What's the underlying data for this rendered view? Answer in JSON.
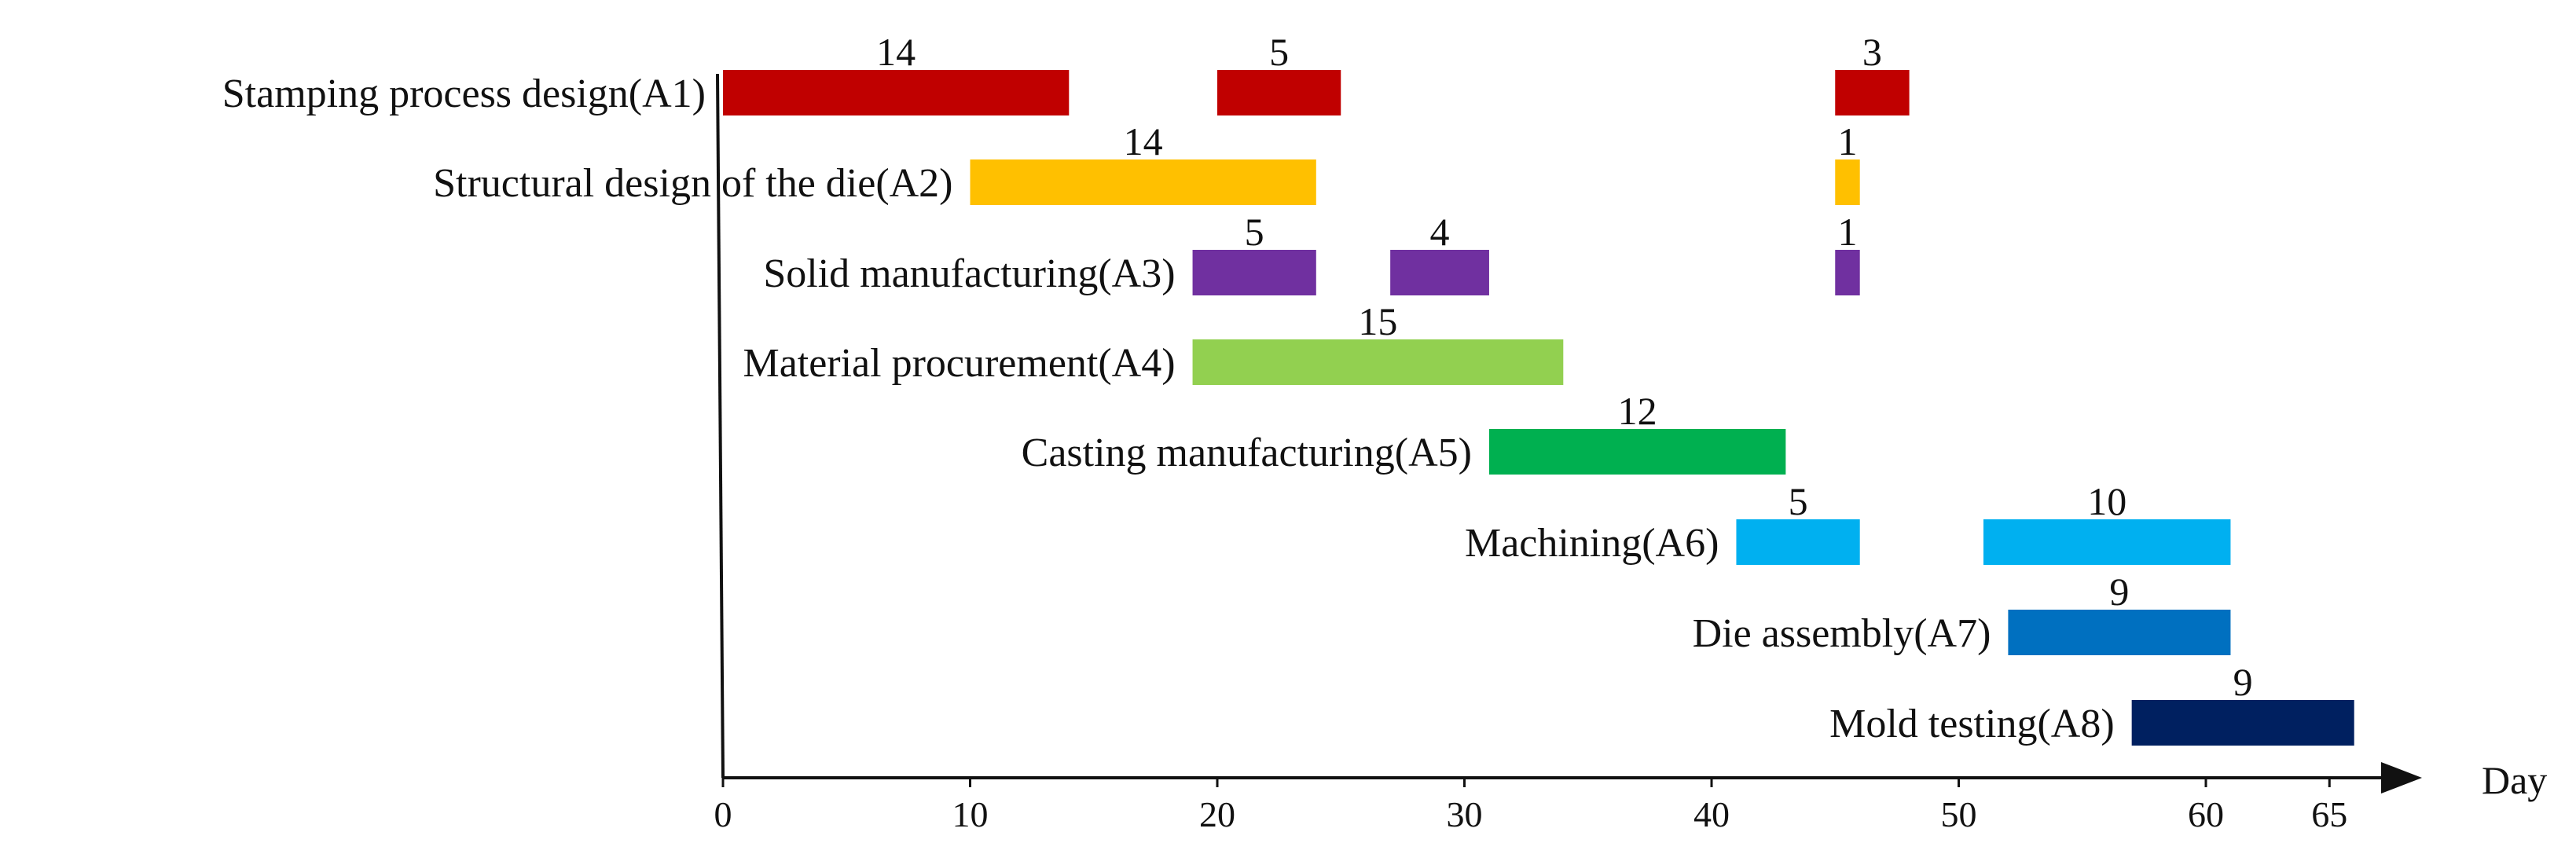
{
  "chart_data": {
    "type": "gantt",
    "title": "",
    "xlabel": "Day",
    "xlim": [
      0,
      66
    ],
    "xticks": [
      0,
      10,
      20,
      30,
      40,
      50,
      60,
      65
    ],
    "tasks": [
      {
        "label": "Stamping process design(A1)",
        "color": "#c00000",
        "segments": [
          {
            "start": 0,
            "end": 14,
            "duration": "14"
          },
          {
            "start": 20,
            "end": 25,
            "duration": "5"
          },
          {
            "start": 45,
            "end": 48,
            "duration": "3"
          }
        ]
      },
      {
        "label": "Structural design of the die(A2)",
        "color": "#ffc000",
        "segments": [
          {
            "start": 10,
            "end": 24,
            "duration": "14"
          },
          {
            "start": 45,
            "end": 46,
            "duration": "1"
          }
        ]
      },
      {
        "label": "Solid manufacturing(A3)",
        "color": "#7030a0",
        "segments": [
          {
            "start": 19,
            "end": 24,
            "duration": "5"
          },
          {
            "start": 27,
            "end": 31,
            "duration": "4"
          },
          {
            "start": 45,
            "end": 46,
            "duration": "1"
          }
        ]
      },
      {
        "label": "Material procurement(A4)",
        "color": "#92d050",
        "segments": [
          {
            "start": 19,
            "end": 34,
            "duration": "15"
          }
        ]
      },
      {
        "label": "Casting manufacturing(A5)",
        "color": "#00b050",
        "segments": [
          {
            "start": 31,
            "end": 43,
            "duration": "12"
          }
        ]
      },
      {
        "label": "Machining(A6)",
        "color": "#00b0f0",
        "segments": [
          {
            "start": 41,
            "end": 46,
            "duration": "5"
          },
          {
            "start": 51,
            "end": 61,
            "duration": "10"
          }
        ]
      },
      {
        "label": "Die assembly(A7)",
        "color": "#0070c0",
        "segments": [
          {
            "start": 52,
            "end": 61,
            "duration": "9"
          }
        ]
      },
      {
        "label": "Mold testing(A8)",
        "color": "#002060",
        "segments": [
          {
            "start": 57,
            "end": 66,
            "duration": "9"
          }
        ]
      }
    ]
  }
}
